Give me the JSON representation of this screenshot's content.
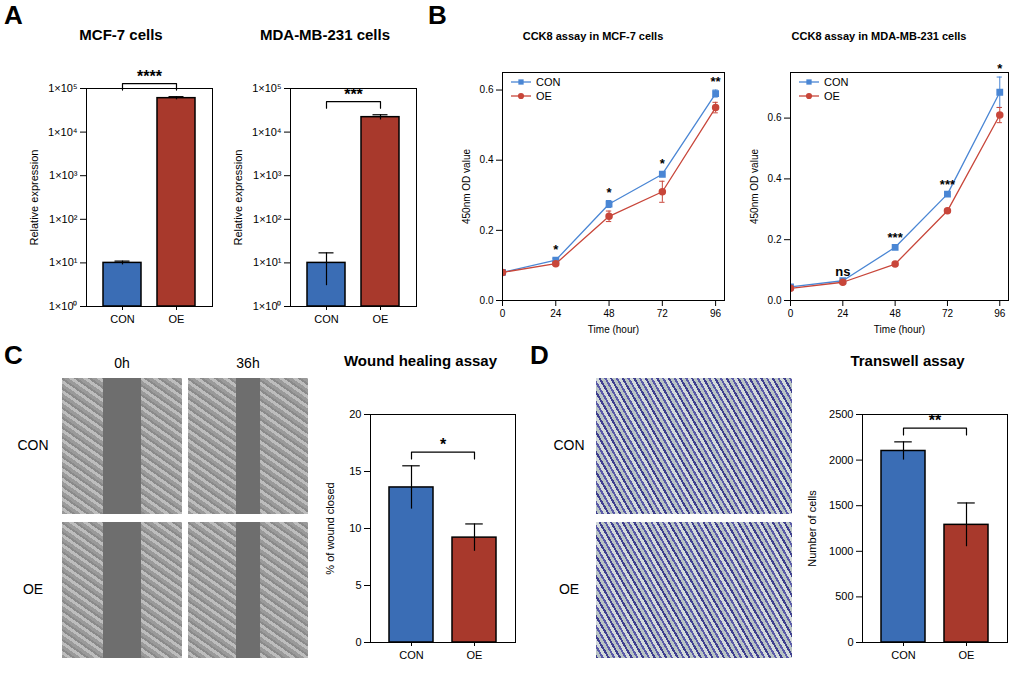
{
  "panels": [
    {
      "letter": "A"
    },
    {
      "letter": "B"
    },
    {
      "letter": "C",
      "images": {
        "columns": [
          "0h",
          "36h"
        ],
        "rows": [
          "CON",
          "OE"
        ]
      }
    },
    {
      "letter": "D",
      "images": {
        "rows": [
          "CON",
          "OE"
        ]
      }
    }
  ],
  "chart_data": [
    {
      "type": "bar",
      "title": "MCF-7 cells",
      "categories": [
        "CON",
        "OE"
      ],
      "values": [
        10,
        60000
      ],
      "errors": [
        1,
        5000
      ],
      "colors": [
        "#3a6db5",
        "#a8392c"
      ],
      "log": "y",
      "ylim": [
        1,
        100000
      ],
      "yticks": [
        {
          "value": 1,
          "label": "1×10⁰"
        },
        {
          "value": 10,
          "label": "1×10¹"
        },
        {
          "value": 100,
          "label": "1×10²"
        },
        {
          "value": 1000,
          "label": "1×10³"
        },
        {
          "value": 10000,
          "label": "1×10⁴"
        },
        {
          "value": 100000,
          "label": "1×10⁵"
        }
      ],
      "ylabel": "Relative expression",
      "annotations": [
        {
          "from": "CON",
          "to": "OE",
          "label": "****"
        }
      ]
    },
    {
      "type": "bar",
      "title": "MDA-MB-231 cells",
      "categories": [
        "CON",
        "OE"
      ],
      "values": [
        10,
        22000
      ],
      "errors": [
        7,
        3000
      ],
      "colors": [
        "#3a6db5",
        "#a8392c"
      ],
      "log": "y",
      "ylim": [
        1,
        100000
      ],
      "yticks": [
        {
          "value": 1,
          "label": "1×10⁰"
        },
        {
          "value": 10,
          "label": "1×10¹"
        },
        {
          "value": 100,
          "label": "1×10²"
        },
        {
          "value": 1000,
          "label": "1×10³"
        },
        {
          "value": 10000,
          "label": "1×10⁴"
        },
        {
          "value": 100000,
          "label": "1×10⁵"
        }
      ],
      "ylabel": "Relative expression",
      "annotations": [
        {
          "from": "CON",
          "to": "OE",
          "label": "***"
        }
      ]
    },
    {
      "type": "line",
      "title": "CCK8 assay in MCF-7 cells",
      "x": [
        0,
        24,
        48,
        72,
        96
      ],
      "series": [
        {
          "name": "CON",
          "color": "#4a86d4",
          "marker": "square",
          "values": [
            0.08,
            0.115,
            0.275,
            0.36,
            0.59
          ],
          "errors": [
            0.005,
            0.005,
            0.01,
            0.005,
            0.01
          ]
        },
        {
          "name": "OE",
          "color": "#c8463a",
          "marker": "circle",
          "values": [
            0.08,
            0.105,
            0.24,
            0.31,
            0.55
          ],
          "errors": [
            0.005,
            0.005,
            0.015,
            0.03,
            0.015
          ]
        }
      ],
      "xlim": [
        0,
        100
      ],
      "xticks": [
        0,
        24,
        48,
        72,
        96
      ],
      "ylim": [
        0,
        0.65
      ],
      "yticks": [
        {
          "value": 0,
          "label": "0.0"
        },
        0.2,
        0.4,
        0.6
      ],
      "xlabel": "Time (hour)",
      "ylabel": "450nm OD value",
      "legend": "top-left",
      "significance": [
        null,
        "*",
        "*",
        "*",
        "**"
      ]
    },
    {
      "type": "line",
      "title": "CCK8 assay in MDA-MB-231 cells",
      "x": [
        0,
        24,
        48,
        72,
        96
      ],
      "series": [
        {
          "name": "CON",
          "color": "#4a86d4",
          "marker": "square",
          "values": [
            0.045,
            0.065,
            0.175,
            0.35,
            0.685
          ],
          "errors": [
            0.003,
            0.003,
            0.005,
            0.005,
            0.05
          ]
        },
        {
          "name": "OE",
          "color": "#c8463a",
          "marker": "circle",
          "values": [
            0.04,
            0.06,
            0.12,
            0.295,
            0.61
          ],
          "errors": [
            0.003,
            0.003,
            0.003,
            0.005,
            0.025
          ]
        }
      ],
      "xlim": [
        0,
        100
      ],
      "xticks": [
        0,
        24,
        48,
        72,
        96
      ],
      "ylim": [
        0,
        0.75
      ],
      "yticks": [
        {
          "value": 0,
          "label": "0.0"
        },
        0.2,
        0.4,
        0.6
      ],
      "xlabel": "Time (hour)",
      "ylabel": "450nm OD value",
      "legend": "top-left",
      "significance": [
        null,
        "ns",
        "***",
        "***",
        "*"
      ]
    },
    {
      "type": "bar",
      "title": "Wound healing assay",
      "categories": [
        "CON",
        "OE"
      ],
      "values": [
        13.6,
        9.2
      ],
      "errors": [
        1.9,
        1.2
      ],
      "colors": [
        "#3a6db5",
        "#a8392c"
      ],
      "ylim": [
        0,
        20
      ],
      "yticks": [
        0,
        5,
        10,
        15,
        20
      ],
      "ylabel": "% of wound closed",
      "annotations": [
        {
          "from": "CON",
          "to": "OE",
          "label": "*"
        }
      ]
    },
    {
      "type": "bar",
      "title": "Transwell assay",
      "categories": [
        "CON",
        "OE"
      ],
      "values": [
        2100,
        1290
      ],
      "errors": [
        100,
        240
      ],
      "colors": [
        "#3a6db5",
        "#a8392c"
      ],
      "ylim": [
        0,
        2500
      ],
      "yticks": [
        0,
        500,
        1000,
        1500,
        2000,
        2500
      ],
      "ylabel": "Number of cells",
      "annotations": [
        {
          "from": "CON",
          "to": "OE",
          "label": "**"
        }
      ]
    }
  ]
}
